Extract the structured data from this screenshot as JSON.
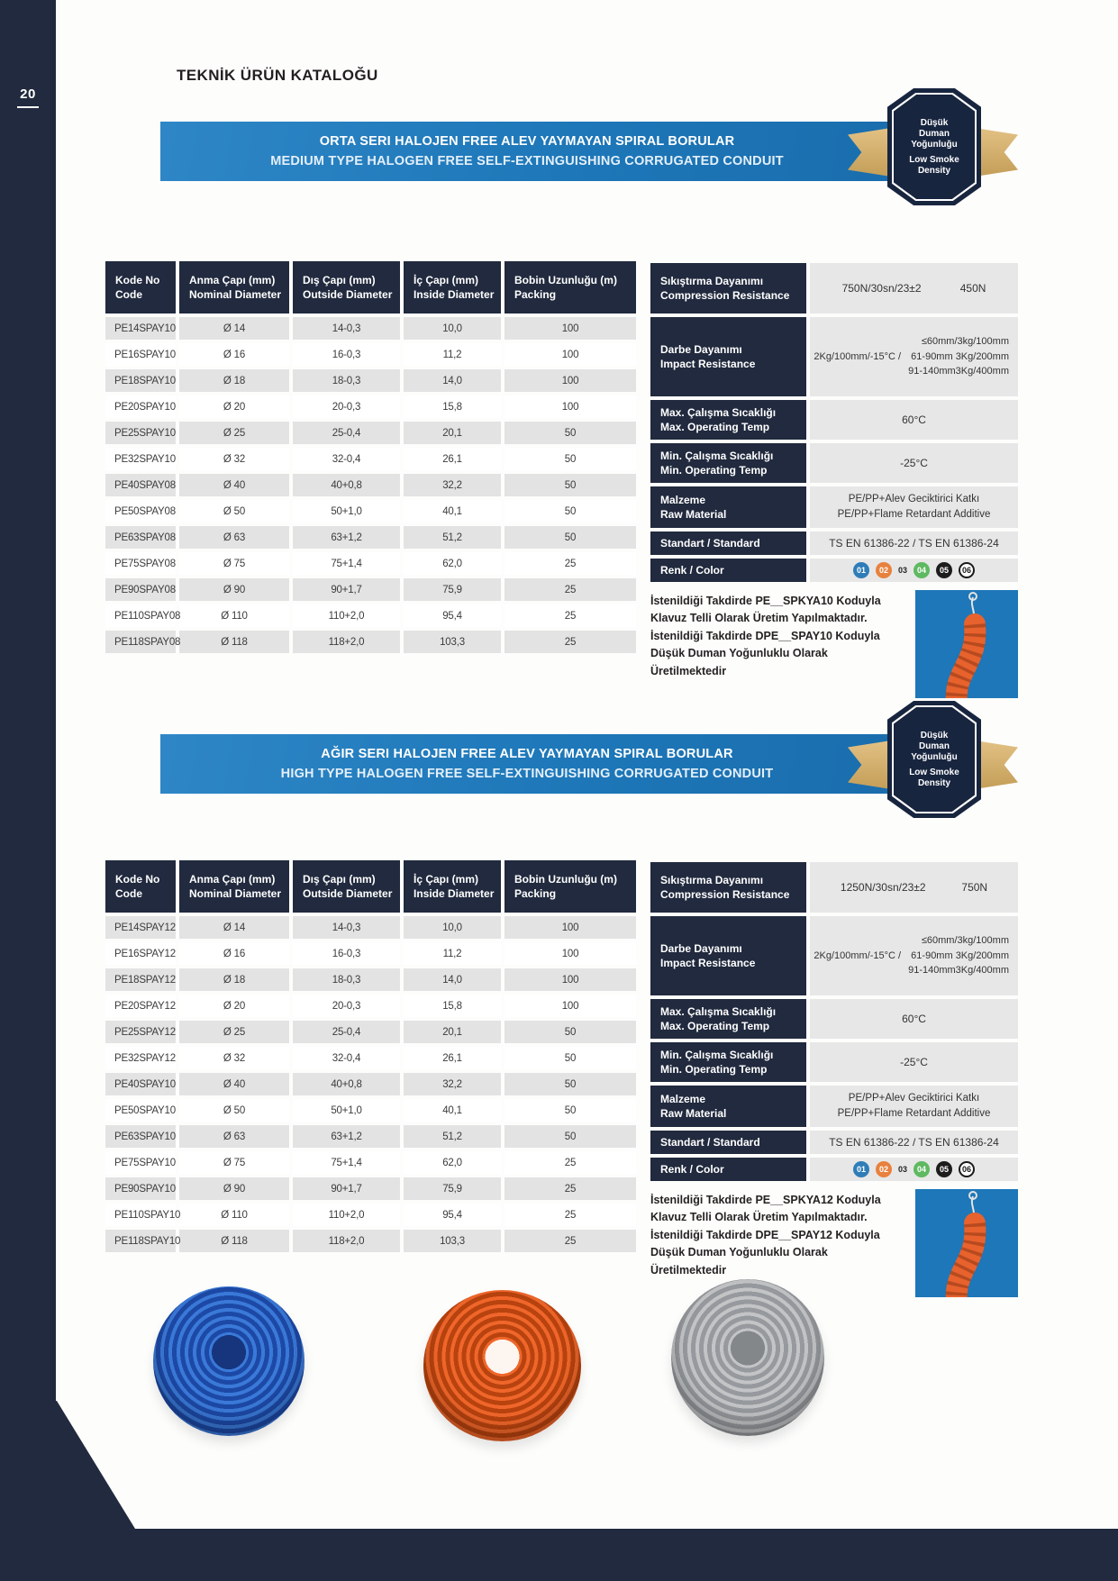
{
  "page": {
    "number": "20",
    "header": "TEKNİK ÜRÜN KATALOĞU"
  },
  "theme": {
    "navy": "#212a3e",
    "navy_badge": "#18253f",
    "blue": "#1d77b8",
    "blue_light": "#2e86c6",
    "gold": "#e2c184",
    "gold_dark": "#c49e58",
    "row_gray": "#e3e3e3",
    "cell_gray": "#e7e7e7",
    "tube_orange": "#e8622d"
  },
  "sections": [
    {
      "banner": {
        "title_tr": "ORTA SERI HALOJEN FREE ALEV YAYMAYAN SPIRAL BORULAR",
        "title_en": "MEDIUM TYPE HALOGEN FREE SELF-EXTINGUISHING CORRUGATED CONDUIT"
      },
      "badge": {
        "tr": "Düşük Duman Yoğunluğu",
        "en": "Low Smoke Density"
      },
      "table": {
        "headers": [
          {
            "tr": "Kode No",
            "en": "Code"
          },
          {
            "tr": "Anma Çapı (mm)",
            "en": "Nominal Diameter"
          },
          {
            "tr": "Dış Çapı (mm)",
            "en": "Outside Diameter"
          },
          {
            "tr": "İç Çapı (mm)",
            "en": "Inside Diameter"
          },
          {
            "tr": "Bobin Uzunluğu (m)",
            "en": "Packing"
          }
        ],
        "rows": [
          [
            "PE14SPAY10",
            "Ø 14",
            "14-0,3",
            "10,0",
            "100"
          ],
          [
            "PE16SPAY10",
            "Ø 16",
            "16-0,3",
            "11,2",
            "100"
          ],
          [
            "PE18SPAY10",
            "Ø 18",
            "18-0,3",
            "14,0",
            "100"
          ],
          [
            "PE20SPAY10",
            "Ø 20",
            "20-0,3",
            "15,8",
            "100"
          ],
          [
            "PE25SPAY10",
            "Ø 25",
            "25-0,4",
            "20,1",
            "50"
          ],
          [
            "PE32SPAY10",
            "Ø 32",
            "32-0,4",
            "26,1",
            "50"
          ],
          [
            "PE40SPAY08",
            "Ø 40",
            "40+0,8",
            "32,2",
            "50"
          ],
          [
            "PE50SPAY08",
            "Ø 50",
            "50+1,0",
            "40,1",
            "50"
          ],
          [
            "PE63SPAY08",
            "Ø 63",
            "63+1,2",
            "51,2",
            "50"
          ],
          [
            "PE75SPAY08",
            "Ø 75",
            "75+1,4",
            "62,0",
            "25"
          ],
          [
            "PE90SPAY08",
            "Ø 90",
            "90+1,7",
            "75,9",
            "25"
          ],
          [
            "PE110SPAY08",
            "Ø 110",
            "110+2,0",
            "95,4",
            "25"
          ],
          [
            "PE118SPAY08",
            "Ø 118",
            "118+2,0",
            "103,3",
            "25"
          ]
        ]
      },
      "specs": {
        "compression": {
          "label_tr": "Sıkıştırma Dayanımı",
          "label_en": "Compression Resistance",
          "value1": "750N/30sn/23±2",
          "value2": "450N"
        },
        "impact": {
          "label_tr": "Darbe Dayanımı",
          "label_en": "Impact Resistance",
          "value_left": "2Kg/100mm/-15°C /",
          "value_lines": [
            "≤60mm/3kg/100mm",
            "61-90mm 3Kg/200mm",
            "91-140mm3Kg/400mm"
          ]
        },
        "max_temp": {
          "label_tr": "Max. Çalışma Sıcaklığı",
          "label_en": "Max. Operating Temp",
          "value": "60°C"
        },
        "min_temp": {
          "label_tr": "Min. Çalışma Sıcaklığı",
          "label_en": "Min. Operating Temp",
          "value": "-25°C"
        },
        "material": {
          "label_tr": "Malzeme",
          "label_en": "Raw Material",
          "value_tr": "PE/PP+Alev Geciktirici Katkı",
          "value_en": "PE/PP+Flame Retardant Additive"
        },
        "standard": {
          "label": "Standart / Standard",
          "value": "TS EN 61386-22 / TS EN 61386-24"
        },
        "color": {
          "label": "Renk / Color",
          "swatches": [
            {
              "label": "01",
              "bg": "#2f7db8",
              "fg": "#ffffff"
            },
            {
              "label": "02",
              "bg": "#e8813e",
              "fg": "#ffffff"
            },
            {
              "label": "03",
              "bg": "transparent",
              "fg": "#231f20"
            },
            {
              "label": "04",
              "bg": "#5fb961",
              "fg": "#ffffff"
            },
            {
              "label": "05",
              "bg": "#1c1c1c",
              "fg": "#ffffff"
            },
            {
              "label": "06",
              "bg": "#ffffff",
              "fg": "#1a1a1a",
              "outline": true
            }
          ]
        }
      },
      "note_lines": [
        "İstenildiği Takdirde PE__SPKYA10 Koduyla",
        "Klavuz Telli Olarak Üretim Yapılmaktadır.",
        "İstenildiği Takdirde DPE__SPAY10 Koduyla",
        "Düşük Duman Yoğunluklu Olarak",
        "Üretilmektedir"
      ]
    },
    {
      "banner": {
        "title_tr": "AĞIR SERI HALOJEN FREE ALEV YAYMAYAN SPIRAL BORULAR",
        "title_en": "HIGH TYPE HALOGEN FREE SELF-EXTINGUISHING CORRUGATED CONDUIT"
      },
      "badge": {
        "tr": "Düşük Duman Yoğunluğu",
        "en": "Low Smoke Density"
      },
      "table": {
        "headers": [
          {
            "tr": "Kode No",
            "en": "Code"
          },
          {
            "tr": "Anma Çapı (mm)",
            "en": "Nominal Diameter"
          },
          {
            "tr": "Dış Çapı (mm)",
            "en": "Outside Diameter"
          },
          {
            "tr": "İç Çapı (mm)",
            "en": "Inside Diameter"
          },
          {
            "tr": "Bobin Uzunluğu (m)",
            "en": "Packing"
          }
        ],
        "rows": [
          [
            "PE14SPAY12",
            "Ø 14",
            "14-0,3",
            "10,0",
            "100"
          ],
          [
            "PE16SPAY12",
            "Ø 16",
            "16-0,3",
            "11,2",
            "100"
          ],
          [
            "PE18SPAY12",
            "Ø 18",
            "18-0,3",
            "14,0",
            "100"
          ],
          [
            "PE20SPAY12",
            "Ø 20",
            "20-0,3",
            "15,8",
            "100"
          ],
          [
            "PE25SPAY12",
            "Ø 25",
            "25-0,4",
            "20,1",
            "50"
          ],
          [
            "PE32SPAY12",
            "Ø 32",
            "32-0,4",
            "26,1",
            "50"
          ],
          [
            "PE40SPAY10",
            "Ø 40",
            "40+0,8",
            "32,2",
            "50"
          ],
          [
            "PE50SPAY10",
            "Ø 50",
            "50+1,0",
            "40,1",
            "50"
          ],
          [
            "PE63SPAY10",
            "Ø 63",
            "63+1,2",
            "51,2",
            "50"
          ],
          [
            "PE75SPAY10",
            "Ø 75",
            "75+1,4",
            "62,0",
            "25"
          ],
          [
            "PE90SPAY10",
            "Ø 90",
            "90+1,7",
            "75,9",
            "25"
          ],
          [
            "PE110SPAY10",
            "Ø 110",
            "110+2,0",
            "95,4",
            "25"
          ],
          [
            "PE118SPAY10",
            "Ø 118",
            "118+2,0",
            "103,3",
            "25"
          ]
        ]
      },
      "specs": {
        "compression": {
          "label_tr": "Sıkıştırma Dayanımı",
          "label_en": "Compression Resistance",
          "value1": "1250N/30sn/23±2",
          "value2": "750N"
        },
        "impact": {
          "label_tr": "Darbe Dayanımı",
          "label_en": "Impact Resistance",
          "value_left": "2Kg/100mm/-15°C /",
          "value_lines": [
            "≤60mm/3kg/100mm",
            "61-90mm 3Kg/200mm",
            "91-140mm3Kg/400mm"
          ]
        },
        "max_temp": {
          "label_tr": "Max. Çalışma Sıcaklığı",
          "label_en": "Max. Operating Temp",
          "value": "60°C"
        },
        "min_temp": {
          "label_tr": "Min. Çalışma Sıcaklığı",
          "label_en": "Min. Operating Temp",
          "value": "-25°C"
        },
        "material": {
          "label_tr": "Malzeme",
          "label_en": "Raw Material",
          "value_tr": "PE/PP+Alev Geciktirici Katkı",
          "value_en": "PE/PP+Flame Retardant Additive"
        },
        "standard": {
          "label": "Standart / Standard",
          "value": "TS EN 61386-22 / TS EN 61386-24"
        },
        "color": {
          "label": "Renk / Color",
          "swatches": [
            {
              "label": "01",
              "bg": "#2f7db8",
              "fg": "#ffffff"
            },
            {
              "label": "02",
              "bg": "#e8813e",
              "fg": "#ffffff"
            },
            {
              "label": "03",
              "bg": "transparent",
              "fg": "#231f20"
            },
            {
              "label": "04",
              "bg": "#5fb961",
              "fg": "#ffffff"
            },
            {
              "label": "05",
              "bg": "#1c1c1c",
              "fg": "#ffffff"
            },
            {
              "label": "06",
              "bg": "#ffffff",
              "fg": "#1a1a1a",
              "outline": true
            }
          ]
        }
      },
      "note_lines": [
        "İstenildiği Takdirde PE__SPKYA12 Koduyla",
        "Klavuz Telli Olarak Üretim Yapılmaktadır.",
        "İstenildiği Takdirde DPE__SPAY12 Koduyla",
        "Düşük Duman Yoğunluklu Olarak",
        "Üretilmektedir"
      ]
    }
  ],
  "products": [
    {
      "name": "blue-coil",
      "ring1": "#3a79d8",
      "ring2": "#1d49a6",
      "hole": "#16357d"
    },
    {
      "name": "orange-coil",
      "ring1": "#f0662a",
      "ring2": "#b8430f",
      "hole": "#fdf5ef"
    },
    {
      "name": "gray-coil",
      "ring1": "#c2c4c6",
      "ring2": "#96999d",
      "hole": "#83878a"
    }
  ]
}
